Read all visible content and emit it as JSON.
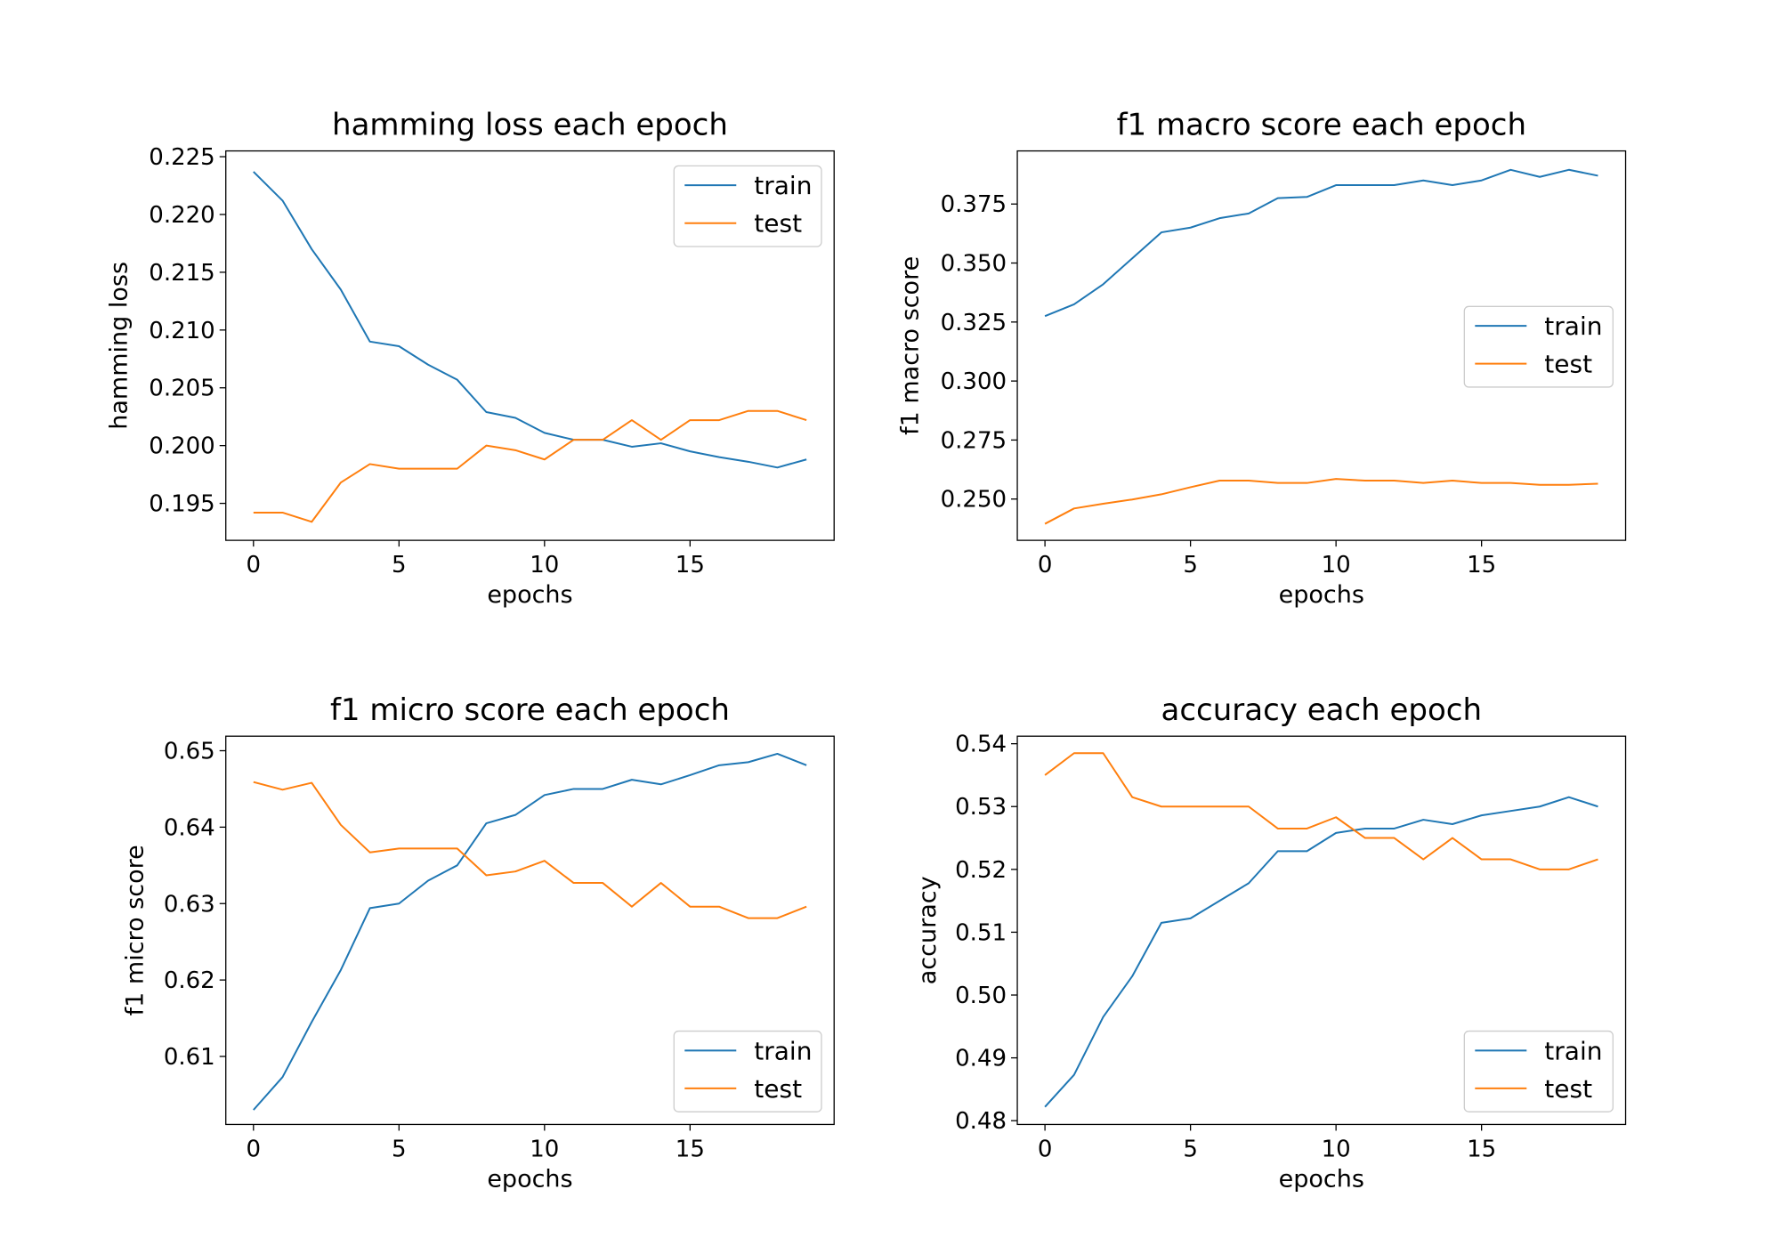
{
  "chart_data": [
    {
      "type": "line",
      "title": "hamming loss each epoch",
      "xlabel": "epochs",
      "ylabel": "hamming loss",
      "xlim": [
        -0.95,
        19.95
      ],
      "ylim": [
        0.1918,
        0.2255
      ],
      "xticks": [
        0,
        5,
        10,
        15
      ],
      "yticks": [
        0.195,
        0.2,
        0.205,
        0.21,
        0.215,
        0.22,
        0.225
      ],
      "ytick_labels": [
        "0.195",
        "0.200",
        "0.205",
        "0.210",
        "0.215",
        "0.220",
        "0.225"
      ],
      "legend_position": "upper right",
      "x": [
        0,
        1,
        2,
        3,
        4,
        5,
        6,
        7,
        8,
        9,
        10,
        11,
        12,
        13,
        14,
        15,
        16,
        17,
        18,
        19
      ],
      "series": [
        {
          "name": "train",
          "color": "#1f77b4",
          "values": [
            0.2237,
            0.2212,
            0.217,
            0.2135,
            0.209,
            0.2086,
            0.207,
            0.2057,
            0.2029,
            0.2024,
            0.2011,
            0.2005,
            0.2005,
            0.1999,
            0.2002,
            0.1995,
            0.199,
            0.1986,
            0.1981,
            0.1988
          ]
        },
        {
          "name": "test",
          "color": "#ff7f0e",
          "values": [
            0.1942,
            0.1942,
            0.1934,
            0.1968,
            0.1984,
            0.198,
            0.198,
            0.198,
            0.2,
            0.1996,
            0.1988,
            0.2005,
            0.2005,
            0.2022,
            0.2005,
            0.2022,
            0.2022,
            0.203,
            0.203,
            0.2022
          ]
        }
      ]
    },
    {
      "type": "line",
      "title": "f1 macro score each epoch",
      "xlabel": "epochs",
      "ylabel": "f1 macro score",
      "xlim": [
        -0.95,
        19.95
      ],
      "ylim": [
        0.2325,
        0.3975
      ],
      "xticks": [
        0,
        5,
        10,
        15
      ],
      "yticks": [
        0.25,
        0.275,
        0.3,
        0.325,
        0.35,
        0.375
      ],
      "ytick_labels": [
        "0.250",
        "0.275",
        "0.300",
        "0.325",
        "0.350",
        "0.375"
      ],
      "legend_position": "center right",
      "x": [
        0,
        1,
        2,
        3,
        4,
        5,
        6,
        7,
        8,
        9,
        10,
        11,
        12,
        13,
        14,
        15,
        16,
        17,
        18,
        19
      ],
      "series": [
        {
          "name": "train",
          "color": "#1f77b4",
          "values": [
            0.3275,
            0.3325,
            0.341,
            0.352,
            0.363,
            0.365,
            0.369,
            0.371,
            0.3775,
            0.378,
            0.383,
            0.383,
            0.383,
            0.385,
            0.383,
            0.385,
            0.3895,
            0.3865,
            0.3895,
            0.387
          ]
        },
        {
          "name": "test",
          "color": "#ff7f0e",
          "values": [
            0.2395,
            0.246,
            0.248,
            0.2498,
            0.252,
            0.255,
            0.2578,
            0.2578,
            0.2568,
            0.2568,
            0.2585,
            0.2578,
            0.2578,
            0.2568,
            0.2578,
            0.2568,
            0.2568,
            0.256,
            0.256,
            0.2565
          ]
        }
      ]
    },
    {
      "type": "line",
      "title": "f1 micro score each epoch",
      "xlabel": "epochs",
      "ylabel": "f1 micro score",
      "xlim": [
        -0.95,
        19.95
      ],
      "ylim": [
        0.6011,
        0.6519
      ],
      "xticks": [
        0,
        5,
        10,
        15
      ],
      "yticks": [
        0.61,
        0.62,
        0.63,
        0.64,
        0.65
      ],
      "ytick_labels": [
        "0.61",
        "0.62",
        "0.63",
        "0.64",
        "0.65"
      ],
      "legend_position": "lower right",
      "x": [
        0,
        1,
        2,
        3,
        4,
        5,
        6,
        7,
        8,
        9,
        10,
        11,
        12,
        13,
        14,
        15,
        16,
        17,
        18,
        19
      ],
      "series": [
        {
          "name": "train",
          "color": "#1f77b4",
          "values": [
            0.603,
            0.6073,
            0.6145,
            0.6213,
            0.6294,
            0.63,
            0.633,
            0.635,
            0.6405,
            0.6416,
            0.6442,
            0.645,
            0.645,
            0.6462,
            0.6456,
            0.6468,
            0.6481,
            0.6485,
            0.6496,
            0.6481
          ]
        },
        {
          "name": "test",
          "color": "#ff7f0e",
          "values": [
            0.6459,
            0.6449,
            0.6458,
            0.6403,
            0.6367,
            0.6372,
            0.6372,
            0.6372,
            0.6337,
            0.6342,
            0.6356,
            0.6327,
            0.6327,
            0.6296,
            0.6327,
            0.6296,
            0.6296,
            0.6281,
            0.6281,
            0.6296
          ]
        }
      ]
    },
    {
      "type": "line",
      "title": "accuracy each epoch",
      "xlabel": "epochs",
      "ylabel": "accuracy",
      "xlim": [
        -0.95,
        19.95
      ],
      "ylim": [
        0.4794,
        0.5412
      ],
      "xticks": [
        0,
        5,
        10,
        15
      ],
      "yticks": [
        0.48,
        0.49,
        0.5,
        0.51,
        0.52,
        0.53,
        0.54
      ],
      "ytick_labels": [
        "0.48",
        "0.49",
        "0.50",
        "0.51",
        "0.52",
        "0.53",
        "0.54"
      ],
      "legend_position": "lower right",
      "x": [
        0,
        1,
        2,
        3,
        4,
        5,
        6,
        7,
        8,
        9,
        10,
        11,
        12,
        13,
        14,
        15,
        16,
        17,
        18,
        19
      ],
      "series": [
        {
          "name": "train",
          "color": "#1f77b4",
          "values": [
            0.4822,
            0.4873,
            0.4965,
            0.503,
            0.5115,
            0.5122,
            0.515,
            0.5178,
            0.5229,
            0.5229,
            0.5258,
            0.5265,
            0.5265,
            0.5279,
            0.5272,
            0.5286,
            0.5293,
            0.53,
            0.5315,
            0.53
          ]
        },
        {
          "name": "test",
          "color": "#ff7f0e",
          "values": [
            0.535,
            0.5385,
            0.5385,
            0.5315,
            0.53,
            0.53,
            0.53,
            0.53,
            0.5265,
            0.5265,
            0.5283,
            0.525,
            0.525,
            0.5216,
            0.525,
            0.5216,
            0.5216,
            0.52,
            0.52,
            0.5216
          ]
        }
      ]
    }
  ]
}
